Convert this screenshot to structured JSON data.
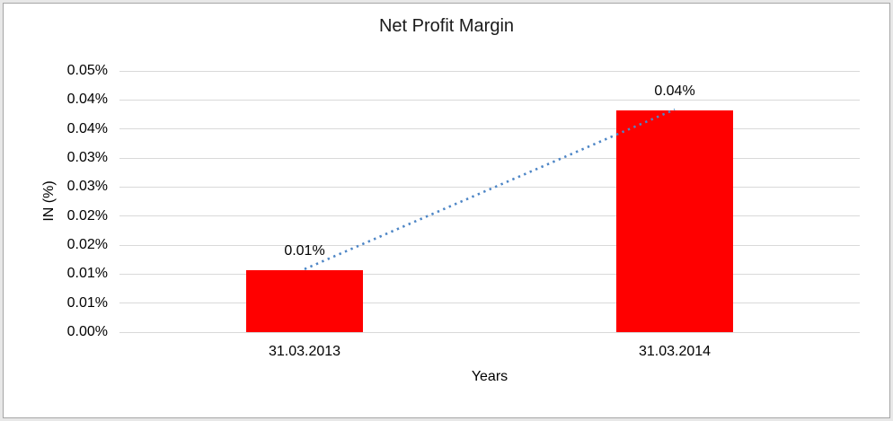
{
  "frame": {
    "background": "#ffffff",
    "border_color": "#a6a6a6",
    "outer_band_color": "#e8e8e8"
  },
  "chart_data": {
    "type": "bar",
    "title": "Net Profit Margin",
    "xlabel": "Years",
    "ylabel": "IN (%)",
    "categories": [
      "31.03.2013",
      "31.03.2014"
    ],
    "series": [
      {
        "name": "Net Profit Margin",
        "type": "bar",
        "color": "#ff0000",
        "values": [
          0.0107,
          0.0382
        ],
        "data_labels": [
          "0.01%",
          "0.04%"
        ]
      }
    ],
    "trendline": {
      "type": "dotted-line",
      "color": "#4e86c6",
      "from_value": 0.0107,
      "to_value": 0.0382
    },
    "ylim": [
      0,
      0.045
    ],
    "y_tick_step": 0.005,
    "y_tick_labels_bottom_to_top": [
      "0.00%",
      "0.01%",
      "0.01%",
      "0.02%",
      "0.02%",
      "0.03%",
      "0.03%",
      "0.04%",
      "0.04%",
      "0.05%"
    ],
    "grid": true,
    "gridline_color": "#d9d9d9",
    "text_color": "#000000",
    "legend": "none"
  }
}
